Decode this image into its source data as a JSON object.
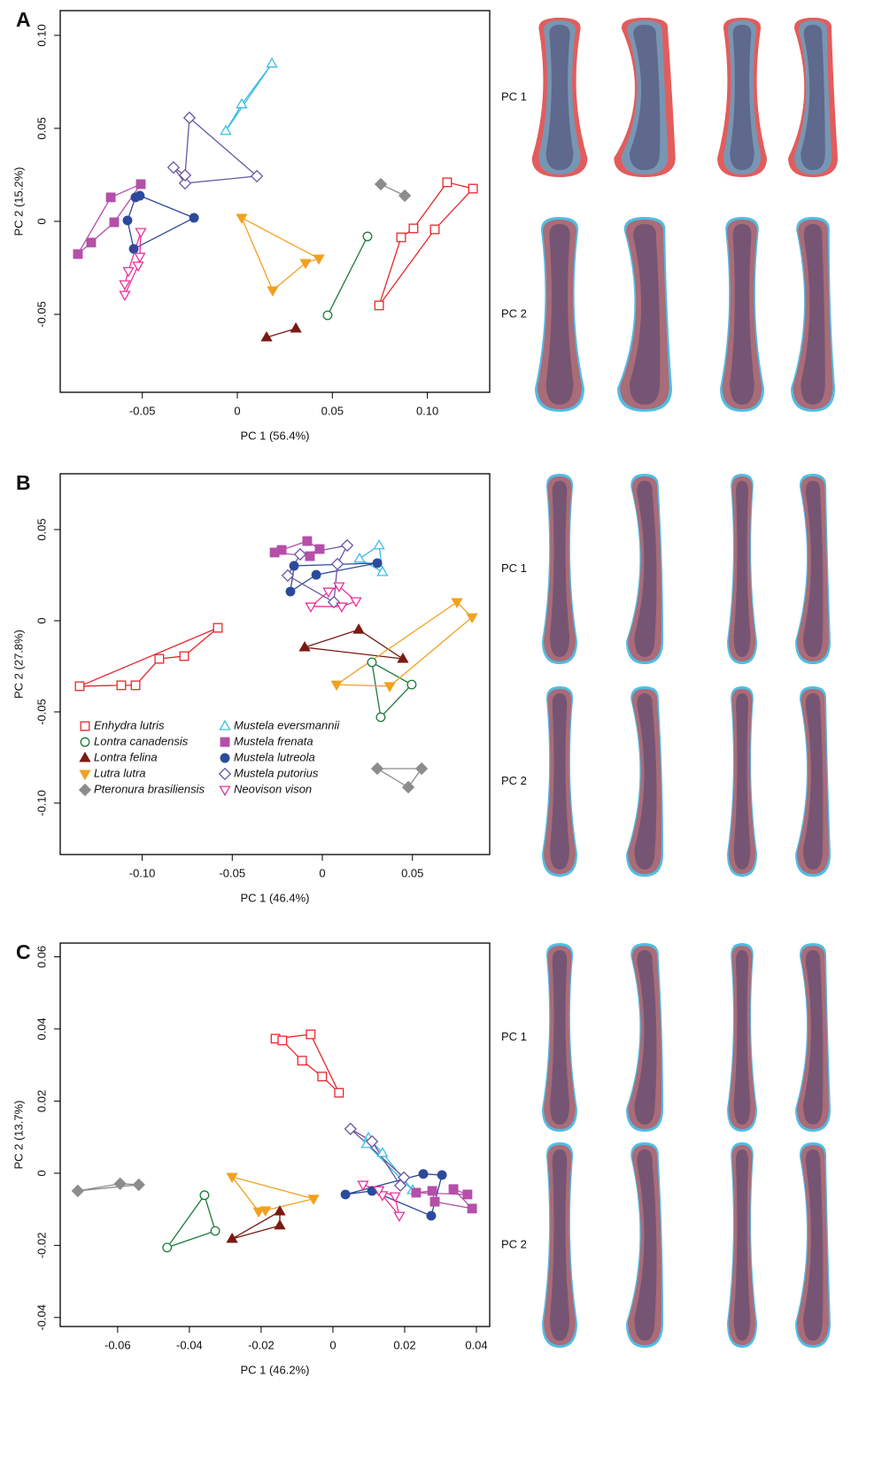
{
  "chart_data": [
    {
      "type": "scatter",
      "panel": "A",
      "x_label": "PC 1 (56.4%)",
      "y_label": "PC 2 (15.2%)",
      "xlim": [
        -0.0932,
        0.1328
      ],
      "ylim": [
        -0.0919,
        0.1133
      ],
      "xticks": [
        -0.05,
        0,
        0.05,
        {
          "value": 0.1,
          "label": "0.10"
        }
      ],
      "yticks": [
        -0.05,
        0,
        0.05,
        {
          "value": 0.1,
          "label": "0.10"
        }
      ],
      "shape_labels": [
        "PC 1",
        "PC 2"
      ],
      "series": [
        {
          "color": "#e8262b",
          "marker": "open-square",
          "x": [
            0.1104,
            0.124,
            0.1039,
            0.0746,
            0.0862,
            0.0927
          ],
          "values": [
            0.021,
            0.0176,
            -0.0043,
            -0.0452,
            -0.0086,
            -0.0038
          ]
        },
        {
          "color": "#1a7a3a",
          "marker": "open-circle",
          "x": [
            0.0685,
            0.0475
          ],
          "values": [
            -0.0081,
            -0.0505
          ]
        },
        {
          "color": "#7a1a12",
          "marker": "triangle",
          "x": [
            0.0154,
            0.0308
          ],
          "values": [
            -0.0624,
            -0.0576
          ]
        },
        {
          "color": "#f2a11f",
          "marker": "down-triangle",
          "x": [
            0.0023,
            0.0429,
            0.0359,
            0.0186
          ],
          "values": [
            0.0019,
            -0.02,
            -0.0224,
            -0.0371
          ]
        },
        {
          "color": "#8c8c8c",
          "marker": "diamond",
          "x": [
            0.0755,
            0.0881
          ],
          "values": [
            0.02,
            0.0138
          ]
        },
        {
          "color": "#3bbde5",
          "marker": "open-triangle",
          "x": [
            0.0182,
            0.0023,
            -0.0061
          ],
          "values": [
            0.0848,
            0.0629,
            0.0486
          ]
        },
        {
          "color": "#b54fa8",
          "marker": "square",
          "x": [
            -0.0508,
            -0.0666,
            -0.0839,
            -0.0769,
            -0.0648
          ],
          "values": [
            0.02,
            0.0129,
            -0.0176,
            -0.0114,
            -0.0005
          ]
        },
        {
          "color": "#2c4a9c",
          "marker": "circle",
          "x": [
            -0.0228,
            -0.0513,
            -0.0536,
            -0.0578,
            -0.0545
          ],
          "values": [
            0.0019,
            0.0138,
            0.0129,
            0.0005,
            -0.0148
          ]
        },
        {
          "color": "#6b56a3",
          "marker": "open-diamond",
          "x": [
            -0.0252,
            0.0103,
            -0.0275,
            -0.0336,
            -0.0275
          ],
          "values": [
            0.0557,
            0.0243,
            0.0205,
            0.029,
            0.0248
          ]
        },
        {
          "color": "#e8339a",
          "marker": "open-down-triangle",
          "x": [
            -0.0508,
            -0.0513,
            -0.0522,
            -0.0592,
            -0.0592,
            -0.0573
          ],
          "values": [
            -0.0057,
            -0.019,
            -0.0238,
            -0.0395,
            -0.0338,
            -0.0267
          ]
        }
      ]
    },
    {
      "type": "scatter",
      "panel": "B",
      "x_label": "PC 1 (46.4%)",
      "y_label": "PC 2 (27.8%)",
      "xlim": [
        -0.1455,
        0.0929
      ],
      "ylim": [
        -0.1282,
        0.0806
      ],
      "xticks": [
        {
          "value": -0.1,
          "label": "-0.10"
        },
        -0.05,
        0,
        0.05
      ],
      "yticks": [
        {
          "value": -0.1,
          "label": "-0.10"
        },
        -0.05,
        0,
        0.05
      ],
      "shape_labels": [
        "PC 1",
        "PC 2"
      ],
      "legend": "lower left",
      "series": [
        {
          "name": "Enhydra lutris",
          "color": "#e8262b",
          "marker": "open-square",
          "x": [
            -0.058,
            -0.0767,
            -0.0905,
            -0.1037,
            -0.1116,
            -0.1347
          ],
          "values": [
            -0.0039,
            -0.0194,
            -0.0209,
            -0.0354,
            -0.0354,
            -0.0359
          ]
        },
        {
          "name": "Lontra canadensis",
          "color": "#1a7a3a",
          "marker": "open-circle",
          "x": [
            0.0275,
            0.0496,
            0.0324
          ],
          "values": [
            -0.0228,
            -0.035,
            -0.0529
          ]
        },
        {
          "name": "Lontra felina",
          "color": "#7a1a12",
          "marker": "triangle",
          "x": [
            0.0202,
            0.0447,
            -0.0098
          ],
          "values": [
            -0.0049,
            -0.0209,
            -0.0146
          ]
        },
        {
          "name": "Lutra lutra",
          "color": "#f2a11f",
          "marker": "down-triangle",
          "x": [
            0.0747,
            0.0831,
            0.0374,
            0.0079
          ],
          "values": [
            0.0102,
            0.0019,
            -0.0359,
            -0.035
          ]
        },
        {
          "name": "Pteronura brasiliensis",
          "color": "#8c8c8c",
          "marker": "diamond",
          "x": [
            0.0305,
            0.0551,
            0.0477
          ],
          "values": [
            -0.0811,
            -0.0811,
            -0.0913
          ]
        },
        {
          "name": "Mustela eversmannii",
          "color": "#3bbde5",
          "marker": "open-triangle",
          "x": [
            0.0315,
            0.0334,
            0.0206
          ],
          "values": [
            0.0413,
            0.0267,
            0.034
          ]
        },
        {
          "name": "Mustela frenata",
          "color": "#b54fa8",
          "marker": "square",
          "x": [
            -0.0265,
            -0.0226,
            -0.0084,
            -0.0015,
            -0.0069
          ],
          "values": [
            0.0374,
            0.0388,
            0.0437,
            0.0393,
            0.0354
          ]
        },
        {
          "name": "Mustela lutreola",
          "color": "#2c4a9c",
          "marker": "circle",
          "x": [
            0.0305,
            -0.0034,
            -0.0177,
            -0.0157
          ],
          "values": [
            0.0316,
            0.0252,
            0.016,
            0.0301
          ]
        },
        {
          "name": "Mustela putorius",
          "color": "#6b56a3",
          "marker": "open-diamond",
          "x": [
            0.0138,
            0.0084,
            0.0064,
            -0.0192,
            -0.0123
          ],
          "values": [
            0.0413,
            0.0311,
            0.0102,
            0.0248,
            0.0364
          ]
        },
        {
          "name": "Neovison vison",
          "color": "#e8339a",
          "marker": "open-down-triangle",
          "x": [
            0.0093,
            0.0187,
            0.0108,
            -0.0064,
            0.0034
          ],
          "values": [
            0.0189,
            0.0107,
            0.0078,
            0.0078,
            0.016
          ]
        }
      ]
    },
    {
      "type": "scatter",
      "panel": "C",
      "x_label": "PC 1 (46.2%)",
      "y_label": "PC 2 (13.7%)",
      "xlim": [
        -0.076,
        0.0437
      ],
      "ylim": [
        -0.0425,
        0.0638
      ],
      "xticks": [
        -0.06,
        -0.04,
        -0.02,
        0,
        0.02,
        0.04
      ],
      "yticks": [
        -0.04,
        -0.02,
        0,
        0.02,
        0.04,
        0.06
      ],
      "shape_labels": [
        "PC 1",
        "PC 2"
      ],
      "series": [
        {
          "color": "#e8262b",
          "marker": "open-square",
          "x": [
            -0.016,
            -0.0062,
            0.0017,
            -0.003,
            -0.0086,
            -0.0141
          ],
          "values": [
            0.0373,
            0.0385,
            0.0223,
            0.0268,
            0.0312,
            0.0368
          ]
        },
        {
          "color": "#1a7a3a",
          "marker": "open-circle",
          "x": [
            -0.0358,
            -0.0328,
            -0.0462
          ],
          "values": [
            -0.0061,
            -0.016,
            -0.0206
          ]
        },
        {
          "color": "#7a1a12",
          "marker": "triangle",
          "x": [
            -0.0148,
            -0.0148,
            -0.0281
          ],
          "values": [
            -0.0106,
            -0.0145,
            -0.0182
          ]
        },
        {
          "color": "#f2a11f",
          "marker": "down-triangle",
          "x": [
            -0.0281,
            -0.0054,
            -0.0188,
            -0.0207
          ],
          "values": [
            -0.001,
            -0.0071,
            -0.0103,
            -0.0106
          ]
        },
        {
          "color": "#8c8c8c",
          "marker": "diamond",
          "x": [
            -0.0711,
            -0.0593,
            -0.0541
          ],
          "values": [
            -0.0049,
            -0.0029,
            -0.0032
          ]
        },
        {
          "color": "#3bbde5",
          "marker": "open-triangle",
          "x": [
            0.0099,
            0.0138,
            0.0222,
            0.0094
          ],
          "values": [
            0.0098,
            0.0056,
            -0.0047,
            0.0081
          ]
        },
        {
          "color": "#b54fa8",
          "marker": "square",
          "x": [
            0.0336,
            0.0388,
            0.0284,
            0.0277,
            0.0232,
            0.0375
          ],
          "values": [
            -0.0044,
            -0.0098,
            -0.0079,
            -0.0049,
            -0.0054,
            -0.0059
          ]
        },
        {
          "color": "#2c4a9c",
          "marker": "circle",
          "x": [
            0.0035,
            0.0252,
            0.0304,
            0.0274,
            0.0109
          ],
          "values": [
            -0.0059,
            -0.0002,
            -0.0005,
            -0.0118,
            -0.0049
          ]
        },
        {
          "color": "#6b56a3",
          "marker": "open-diamond",
          "x": [
            0.0049,
            0.0198,
            0.0188,
            0.0109
          ],
          "values": [
            0.0123,
            -0.0012,
            -0.0034,
            0.0088
          ]
        },
        {
          "color": "#e8339a",
          "marker": "open-down-triangle",
          "x": [
            0.0084,
            0.0173,
            0.0185,
            0.0138,
            0.0128
          ],
          "values": [
            -0.0032,
            -0.0064,
            -0.0118,
            -0.0061,
            -0.0047
          ]
        }
      ]
    }
  ]
}
